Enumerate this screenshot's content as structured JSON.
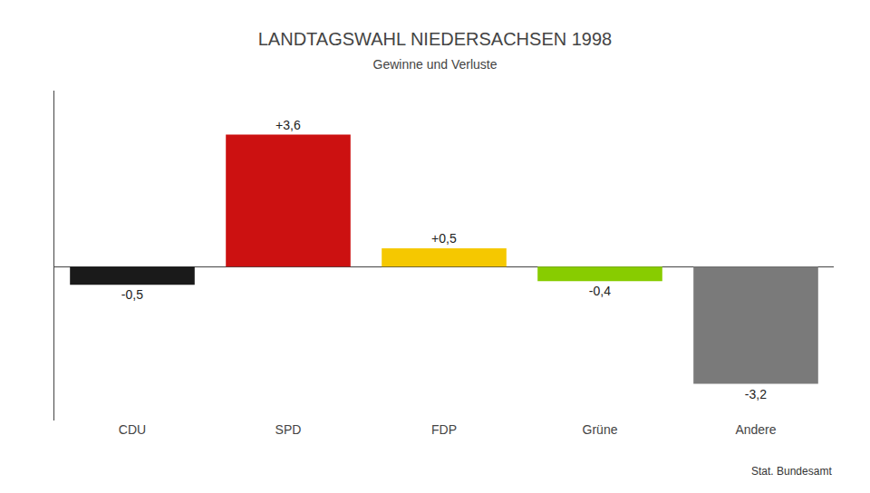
{
  "chart_data": {
    "type": "bar",
    "title": "LANDTAGSWAHL NIEDERSACHSEN 1998",
    "subtitle": "Gewinne und Verluste",
    "annotations": [
      "Stat. Bundesamt"
    ],
    "categories": [
      "CDU",
      "SPD",
      "FDP",
      "Grüne",
      "Andere"
    ],
    "values": [
      -0.5,
      3.6,
      0.5,
      -0.4,
      -3.2
    ],
    "value_labels": [
      "-0,5",
      "+3,6",
      "+0,5",
      "-0,4",
      "-3,2"
    ],
    "data_labels": true,
    "colors": [
      "#1a1a1a",
      "#cc1111",
      "#f5c800",
      "#88cc00",
      "#7a7a7a"
    ],
    "ylim": [
      -4.2,
      4.8
    ],
    "tick_labels": "x",
    "grid": false
  }
}
